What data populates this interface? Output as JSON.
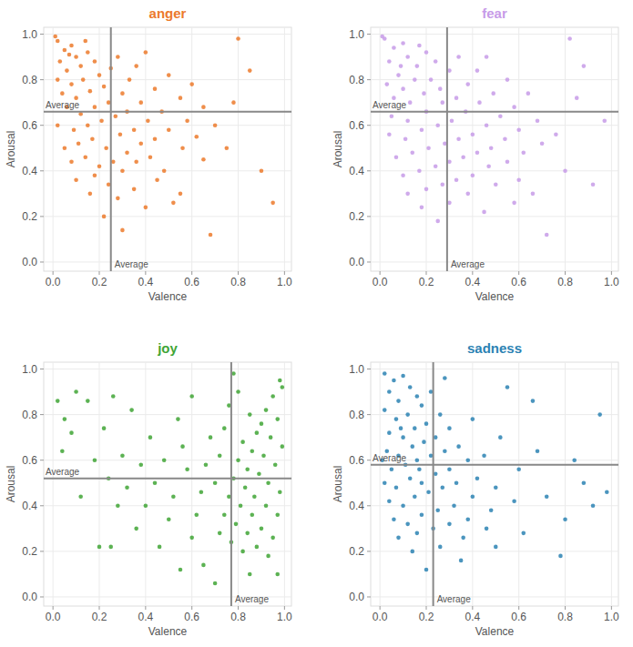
{
  "chart_data": [
    {
      "type": "scatter",
      "title": "anger",
      "x_label": "Valence",
      "y_label": "Arousal",
      "color": "#ec7a2c",
      "grid": true,
      "xlim": [
        -0.04,
        1.03
      ],
      "ylim": [
        -0.04,
        1.03
      ],
      "xticks": [
        {
          "value": 0,
          "label": "0.0"
        },
        0.2,
        0.4,
        0.6,
        0.8,
        {
          "value": 1,
          "label": "1.0"
        }
      ],
      "yticks": [
        {
          "value": 0,
          "label": "0.0"
        },
        0.2,
        0.4,
        0.6,
        0.8,
        {
          "value": 1,
          "label": "1.0"
        }
      ],
      "annotations": [
        {
          "type": "vline",
          "value": 0.25,
          "text": "Average"
        },
        {
          "type": "hline",
          "value": 0.66,
          "text": "Average"
        }
      ],
      "x": [
        0.02,
        0.05,
        0.08,
        0.03,
        0.1,
        0.12,
        0.06,
        0.15,
        0.18,
        0.02,
        0.08,
        0.13,
        0.2,
        0.04,
        0.1,
        0.16,
        0.22,
        0.25,
        0.28,
        0.06,
        0.12,
        0.18,
        0.24,
        0.3,
        0.33,
        0.36,
        0.4,
        0.02,
        0.09,
        0.15,
        0.21,
        0.27,
        0.32,
        0.38,
        0.44,
        0.5,
        0.05,
        0.11,
        0.17,
        0.23,
        0.29,
        0.35,
        0.41,
        0.47,
        0.55,
        0.6,
        0.08,
        0.14,
        0.2,
        0.26,
        0.32,
        0.38,
        0.44,
        0.5,
        0.58,
        0.65,
        0.1,
        0.18,
        0.24,
        0.3,
        0.36,
        0.42,
        0.48,
        0.56,
        0.62,
        0.7,
        0.16,
        0.28,
        0.35,
        0.45,
        0.22,
        0.4,
        0.55,
        0.68,
        0.75,
        0.8,
        0.85,
        0.9,
        0.95,
        0.78,
        0.65,
        0.52,
        0.3,
        0.01,
        0.07,
        0.14
      ],
      "values": [
        0.97,
        0.93,
        0.95,
        0.88,
        0.9,
        0.86,
        0.84,
        0.92,
        0.88,
        0.8,
        0.78,
        0.8,
        0.82,
        0.74,
        0.72,
        0.75,
        0.77,
        0.85,
        0.9,
        0.68,
        0.65,
        0.68,
        0.7,
        0.74,
        0.8,
        0.86,
        0.92,
        0.6,
        0.58,
        0.6,
        0.62,
        0.64,
        0.66,
        0.7,
        0.76,
        0.82,
        0.5,
        0.52,
        0.54,
        0.5,
        0.56,
        0.58,
        0.62,
        0.66,
        0.72,
        0.78,
        0.44,
        0.46,
        0.42,
        0.44,
        0.48,
        0.52,
        0.54,
        0.58,
        0.62,
        0.68,
        0.36,
        0.38,
        0.34,
        0.4,
        0.44,
        0.46,
        0.4,
        0.5,
        0.55,
        0.6,
        0.3,
        0.28,
        0.32,
        0.36,
        0.2,
        0.24,
        0.3,
        0.12,
        0.5,
        0.98,
        0.84,
        0.4,
        0.26,
        0.7,
        0.45,
        0.26,
        0.14,
        0.99,
        0.91,
        0.97
      ]
    },
    {
      "type": "scatter",
      "title": "fear",
      "x_label": "Valence",
      "y_label": "Arousal",
      "color": "#c79be8",
      "grid": true,
      "xlim": [
        -0.04,
        1.03
      ],
      "ylim": [
        -0.04,
        1.03
      ],
      "xticks": [
        {
          "value": 0,
          "label": "0.0"
        },
        0.2,
        0.4,
        0.6,
        0.8,
        {
          "value": 1,
          "label": "1.0"
        }
      ],
      "yticks": [
        {
          "value": 0,
          "label": "0.0"
        },
        0.2,
        0.4,
        0.6,
        0.8,
        {
          "value": 1,
          "label": "1.0"
        }
      ],
      "annotations": [
        {
          "type": "vline",
          "value": 0.29,
          "text": "Average"
        },
        {
          "type": "hline",
          "value": 0.66,
          "text": "Average"
        }
      ],
      "x": [
        0.02,
        0.06,
        0.1,
        0.04,
        0.12,
        0.16,
        0.08,
        0.2,
        0.24,
        0.03,
        0.1,
        0.15,
        0.22,
        0.06,
        0.13,
        0.19,
        0.26,
        0.3,
        0.34,
        0.05,
        0.12,
        0.2,
        0.27,
        0.33,
        0.38,
        0.42,
        0.46,
        0.04,
        0.11,
        0.18,
        0.25,
        0.31,
        0.37,
        0.43,
        0.49,
        0.55,
        0.07,
        0.14,
        0.21,
        0.28,
        0.34,
        0.4,
        0.46,
        0.52,
        0.58,
        0.64,
        0.1,
        0.17,
        0.24,
        0.3,
        0.36,
        0.42,
        0.48,
        0.54,
        0.6,
        0.68,
        0.12,
        0.2,
        0.27,
        0.33,
        0.4,
        0.47,
        0.55,
        0.62,
        0.7,
        0.76,
        0.18,
        0.3,
        0.38,
        0.5,
        0.25,
        0.45,
        0.6,
        0.72,
        0.8,
        0.82,
        0.88,
        0.92,
        0.97,
        0.85,
        0.66,
        0.58,
        0.01,
        0.09,
        0.17
      ],
      "values": [
        0.98,
        0.94,
        0.96,
        0.88,
        0.9,
        0.86,
        0.82,
        0.92,
        0.88,
        0.78,
        0.76,
        0.8,
        0.8,
        0.72,
        0.7,
        0.74,
        0.76,
        0.84,
        0.9,
        0.64,
        0.62,
        0.66,
        0.7,
        0.72,
        0.78,
        0.84,
        0.9,
        0.56,
        0.54,
        0.58,
        0.6,
        0.62,
        0.66,
        0.7,
        0.74,
        0.8,
        0.46,
        0.48,
        0.5,
        0.52,
        0.54,
        0.56,
        0.6,
        0.64,
        0.68,
        0.74,
        0.38,
        0.4,
        0.42,
        0.44,
        0.46,
        0.48,
        0.5,
        0.54,
        0.58,
        0.62,
        0.3,
        0.32,
        0.34,
        0.36,
        0.38,
        0.42,
        0.44,
        0.48,
        0.52,
        0.56,
        0.24,
        0.26,
        0.3,
        0.34,
        0.18,
        0.22,
        0.36,
        0.12,
        0.4,
        0.98,
        0.86,
        0.34,
        0.62,
        0.72,
        0.3,
        0.26,
        0.99,
        0.86,
        0.95
      ]
    },
    {
      "type": "scatter",
      "title": "joy",
      "x_label": "Valence",
      "y_label": "Arousal",
      "color": "#3fa535",
      "grid": true,
      "xlim": [
        -0.04,
        1.03
      ],
      "ylim": [
        -0.04,
        1.03
      ],
      "xticks": [
        {
          "value": 0,
          "label": "0.0"
        },
        0.2,
        0.4,
        0.6,
        0.8,
        {
          "value": 1,
          "label": "1.0"
        }
      ],
      "yticks": [
        {
          "value": 0,
          "label": "0.0"
        },
        0.2,
        0.4,
        0.6,
        0.8,
        {
          "value": 1,
          "label": "1.0"
        }
      ],
      "annotations": [
        {
          "type": "vline",
          "value": 0.77,
          "text": "Average"
        },
        {
          "type": "hline",
          "value": 0.52,
          "text": "Average"
        }
      ],
      "x": [
        0.98,
        0.95,
        0.92,
        0.97,
        0.9,
        0.85,
        0.88,
        0.94,
        0.99,
        0.82,
        0.86,
        0.91,
        0.96,
        0.8,
        0.84,
        0.89,
        0.93,
        0.98,
        0.78,
        0.83,
        0.87,
        0.92,
        0.97,
        0.76,
        0.81,
        0.86,
        0.9,
        0.95,
        0.74,
        0.79,
        0.84,
        0.88,
        0.93,
        0.72,
        0.77,
        0.82,
        0.7,
        0.72,
        0.74,
        0.76,
        0.8,
        0.68,
        0.66,
        0.64,
        0.62,
        0.6,
        0.58,
        0.56,
        0.54,
        0.52,
        0.5,
        0.48,
        0.46,
        0.44,
        0.42,
        0.4,
        0.38,
        0.36,
        0.34,
        0.32,
        0.3,
        0.28,
        0.26,
        0.24,
        0.22,
        0.2,
        0.18,
        0.15,
        0.12,
        0.08,
        0.05,
        0.02,
        0.04,
        0.65,
        0.7,
        0.55,
        0.85,
        0.97,
        0.99,
        0.78,
        0.6,
        0.25,
        0.1
      ],
      "values": [
        0.95,
        0.88,
        0.82,
        0.78,
        0.76,
        0.8,
        0.72,
        0.7,
        0.66,
        0.68,
        0.64,
        0.62,
        0.58,
        0.6,
        0.56,
        0.54,
        0.5,
        0.46,
        0.52,
        0.48,
        0.44,
        0.4,
        0.36,
        0.44,
        0.4,
        0.36,
        0.3,
        0.26,
        0.36,
        0.32,
        0.28,
        0.22,
        0.18,
        0.28,
        0.24,
        0.2,
        0.5,
        0.62,
        0.74,
        0.84,
        0.9,
        0.7,
        0.58,
        0.46,
        0.36,
        0.26,
        0.56,
        0.66,
        0.78,
        0.44,
        0.34,
        0.6,
        0.22,
        0.5,
        0.7,
        0.4,
        0.58,
        0.3,
        0.82,
        0.48,
        0.62,
        0.4,
        0.88,
        0.52,
        0.74,
        0.22,
        0.6,
        0.86,
        0.44,
        0.72,
        0.78,
        0.86,
        0.64,
        0.14,
        0.06,
        0.12,
        0.1,
        0.1,
        0.92,
        0.98,
        0.88,
        0.22,
        0.9
      ]
    },
    {
      "type": "scatter",
      "title": "sadness",
      "x_label": "Valence",
      "y_label": "Arousal",
      "color": "#2c82b3",
      "grid": true,
      "xlim": [
        -0.04,
        1.03
      ],
      "ylim": [
        -0.04,
        1.03
      ],
      "xticks": [
        {
          "value": 0,
          "label": "0.0"
        },
        0.2,
        0.4,
        0.6,
        0.8,
        {
          "value": 1,
          "label": "1.0"
        }
      ],
      "yticks": [
        {
          "value": 0,
          "label": "0.0"
        },
        0.2,
        0.4,
        0.6,
        0.8,
        {
          "value": 1,
          "label": "1.0"
        }
      ],
      "annotations": [
        {
          "type": "vline",
          "value": 0.23,
          "text": "Average"
        },
        {
          "type": "hline",
          "value": 0.58,
          "text": "Average"
        }
      ],
      "x": [
        0.02,
        0.06,
        0.1,
        0.04,
        0.08,
        0.13,
        0.16,
        0.02,
        0.07,
        0.12,
        0.18,
        0.22,
        0.04,
        0.1,
        0.15,
        0.2,
        0.26,
        0.03,
        0.08,
        0.14,
        0.19,
        0.24,
        0.3,
        0.05,
        0.11,
        0.16,
        0.22,
        0.28,
        0.34,
        0.02,
        0.07,
        0.13,
        0.18,
        0.24,
        0.3,
        0.38,
        0.04,
        0.1,
        0.15,
        0.21,
        0.27,
        0.33,
        0.42,
        0.06,
        0.12,
        0.18,
        0.25,
        0.32,
        0.4,
        0.5,
        0.08,
        0.16,
        0.23,
        0.3,
        0.38,
        0.48,
        0.58,
        0.14,
        0.26,
        0.36,
        0.46,
        0.2,
        0.35,
        0.5,
        0.62,
        0.45,
        0.52,
        0.4,
        0.6,
        0.68,
        0.72,
        0.8,
        0.78,
        0.88,
        0.95,
        0.92,
        0.98,
        0.66,
        0.55,
        0.84,
        0.28,
        0.01,
        0.09,
        0.17
      ],
      "values": [
        0.98,
        0.95,
        0.97,
        0.9,
        0.86,
        0.92,
        0.88,
        0.82,
        0.78,
        0.8,
        0.84,
        0.9,
        0.72,
        0.7,
        0.74,
        0.76,
        0.8,
        0.64,
        0.62,
        0.66,
        0.68,
        0.7,
        0.74,
        0.56,
        0.58,
        0.6,
        0.62,
        0.64,
        0.66,
        0.5,
        0.48,
        0.52,
        0.5,
        0.54,
        0.56,
        0.6,
        0.42,
        0.4,
        0.44,
        0.46,
        0.48,
        0.5,
        0.52,
        0.34,
        0.32,
        0.36,
        0.38,
        0.4,
        0.44,
        0.48,
        0.26,
        0.28,
        0.3,
        0.32,
        0.34,
        0.38,
        0.42,
        0.2,
        0.22,
        0.26,
        0.3,
        0.12,
        0.16,
        0.22,
        0.28,
        0.62,
        0.7,
        0.78,
        0.56,
        0.64,
        0.44,
        0.34,
        0.18,
        0.5,
        0.8,
        0.4,
        0.46,
        0.86,
        0.92,
        0.6,
        0.96,
        0.6,
        0.74,
        0.56
      ]
    }
  ]
}
